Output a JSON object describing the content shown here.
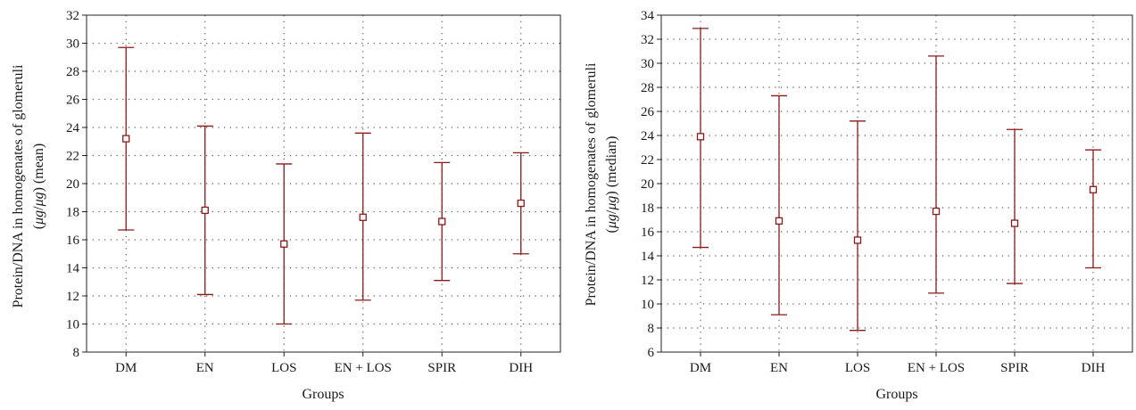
{
  "chart_data": [
    {
      "type": "errorbar",
      "xlabel": "Groups",
      "ylabel_line1": "Protein/DNA in homogenates of glomeruli",
      "ylabel_line2_pre": "(",
      "ylabel_unit_a": "μg",
      "ylabel_slash": "/",
      "ylabel_unit_b": "μg",
      "ylabel_line2_post": ") (mean)",
      "ylim": [
        8,
        32
      ],
      "yticks": [
        8,
        10,
        12,
        14,
        16,
        18,
        20,
        22,
        24,
        26,
        28,
        30,
        32
      ],
      "grid": true,
      "categories": [
        "DM",
        "EN",
        "LOS",
        "EN + LOS",
        "SPIR",
        "DIH"
      ],
      "center": [
        23.2,
        18.1,
        15.7,
        17.6,
        17.3,
        18.6
      ],
      "lower": [
        16.7,
        12.1,
        10.0,
        11.7,
        13.1,
        15.0
      ],
      "upper": [
        29.7,
        24.1,
        21.4,
        23.6,
        21.5,
        22.2
      ]
    },
    {
      "type": "errorbar",
      "xlabel": "Groups",
      "ylabel_line1": "Protein/DNA in homogenates of glomeruli",
      "ylabel_line2_pre": "(",
      "ylabel_unit_a": "μg",
      "ylabel_slash": "/",
      "ylabel_unit_b": "μg",
      "ylabel_line2_post": ") (median)",
      "ylim": [
        6,
        34
      ],
      "yticks": [
        6,
        8,
        10,
        12,
        14,
        16,
        18,
        20,
        22,
        24,
        26,
        28,
        30,
        32,
        34
      ],
      "grid": true,
      "categories": [
        "DM",
        "EN",
        "LOS",
        "EN + LOS",
        "SPIR",
        "DIH"
      ],
      "center": [
        23.9,
        16.9,
        15.3,
        17.7,
        16.7,
        19.5
      ],
      "lower": [
        14.7,
        9.1,
        7.8,
        10.9,
        11.7,
        13.0
      ],
      "upper": [
        32.9,
        27.3,
        25.2,
        30.6,
        24.5,
        22.8
      ]
    }
  ],
  "colors": {
    "mark": "#8b1a1a",
    "grid": "#555555",
    "frame": "#222222",
    "text": "#1a1a1a"
  }
}
